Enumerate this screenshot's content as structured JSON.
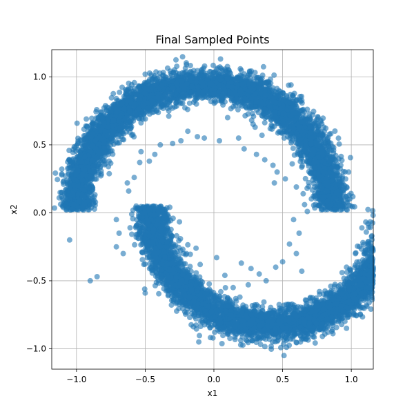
{
  "chart_data": {
    "type": "scatter",
    "title": "Final Sampled Points",
    "xlabel": "x1",
    "ylabel": "x2",
    "xlim": [
      -1.18,
      1.16
    ],
    "ylim": [
      -1.15,
      1.2
    ],
    "xticks": [
      -1.0,
      -0.5,
      0.0,
      0.5,
      1.0
    ],
    "xtick_labels": [
      "−1.0",
      "−0.5",
      "0.0",
      "0.5",
      "1.0"
    ],
    "yticks": [
      -1.0,
      -0.5,
      0.0,
      0.5,
      1.0
    ],
    "ytick_labels": [
      "−1.0",
      "−0.5",
      "0.0",
      "0.5",
      "1.0"
    ],
    "grid": true,
    "marker_color": "#1f77b4",
    "marker_alpha": 0.6,
    "series": [
      {
        "shape": "two-moons",
        "points_total": 10000,
        "upper_moon": {
          "center": [
            -0.07,
            0.02
          ],
          "radius": 0.93,
          "angle_range_deg": [
            0,
            180
          ]
        },
        "lower_moon": {
          "center": [
            0.42,
            0.05
          ],
          "radius": 0.88,
          "angle_range_deg": [
            180,
            360
          ]
        },
        "scatter_points": [
          [
            0.49,
            0.64
          ],
          [
            -0.2,
            1.09
          ],
          [
            -0.5,
            1.02
          ],
          [
            0.57,
            0.36
          ],
          [
            0.73,
            0.37
          ],
          [
            0.85,
            0.38
          ],
          [
            0.98,
            0.3
          ],
          [
            1.06,
            -0.49
          ],
          [
            1.03,
            -0.3
          ],
          [
            -0.5,
            -0.59
          ],
          [
            0.51,
            -1.05
          ],
          [
            0.63,
            -0.95
          ],
          [
            -0.11,
            -0.95
          ],
          [
            -0.98,
            0.08
          ],
          [
            -1.02,
            0.06
          ],
          [
            -0.71,
            -0.05
          ],
          [
            -0.63,
            0.22
          ],
          [
            -0.62,
            0.16
          ],
          [
            -0.58,
            0.26
          ],
          [
            -0.54,
            0.37
          ],
          [
            -0.47,
            0.38
          ],
          [
            -0.53,
            0.45
          ],
          [
            -0.43,
            0.43
          ],
          [
            -0.39,
            0.5
          ],
          [
            -0.3,
            0.51
          ],
          [
            -0.24,
            0.53
          ],
          [
            -0.19,
            0.6
          ],
          [
            -0.12,
            0.56
          ],
          [
            -0.07,
            0.55
          ],
          [
            0.04,
            0.53
          ],
          [
            0.14,
            0.78
          ],
          [
            0.1,
            0.7
          ],
          [
            0.18,
            0.55
          ],
          [
            0.22,
            0.47
          ],
          [
            0.31,
            0.43
          ],
          [
            0.37,
            0.39
          ],
          [
            0.43,
            0.35
          ],
          [
            0.46,
            0.3
          ],
          [
            0.44,
            0.22
          ],
          [
            0.52,
            0.25
          ],
          [
            0.6,
            0.19
          ],
          [
            0.65,
            0.14
          ],
          [
            0.66,
            0.06
          ],
          [
            0.68,
            0.01
          ],
          [
            0.58,
            -0.05
          ],
          [
            0.62,
            -0.15
          ],
          [
            0.55,
            -0.23
          ],
          [
            0.6,
            -0.3
          ],
          [
            0.5,
            -0.36
          ],
          [
            0.45,
            -0.4
          ],
          [
            0.64,
            -0.43
          ],
          [
            -0.66,
            -0.3
          ],
          [
            -0.69,
            -0.15
          ],
          [
            -0.71,
            -0.25
          ],
          [
            -0.61,
            -0.11
          ],
          [
            -0.54,
            0.03
          ],
          [
            -0.47,
            -0.17
          ],
          [
            -0.39,
            -0.25
          ],
          [
            -0.42,
            -0.33
          ],
          [
            -0.34,
            -0.57
          ],
          [
            -0.3,
            -0.42
          ],
          [
            -0.26,
            -0.35
          ],
          [
            -0.2,
            -0.3
          ],
          [
            -0.13,
            -0.26
          ],
          [
            -0.1,
            -0.38
          ],
          [
            0.02,
            -0.33
          ],
          [
            0.08,
            -0.46
          ],
          [
            -0.02,
            -0.62
          ],
          [
            0.14,
            -0.55
          ],
          [
            0.2,
            -0.37
          ],
          [
            0.27,
            -0.41
          ],
          [
            0.33,
            -0.45
          ],
          [
            0.38,
            -0.5
          ],
          [
            0.25,
            -0.53
          ],
          [
            -0.9,
            -0.5
          ],
          [
            -0.85,
            -0.47
          ],
          [
            -1.06,
            0.1
          ],
          [
            -1.05,
            -0.2
          ],
          [
            0.9,
            0.33
          ],
          [
            0.95,
            0.2
          ],
          [
            -0.16,
            0.93
          ],
          [
            0.12,
            0.88
          ],
          [
            0.28,
            0.73
          ],
          [
            0.3,
            0.63
          ],
          [
            0.35,
            0.57
          ]
        ]
      }
    ]
  }
}
